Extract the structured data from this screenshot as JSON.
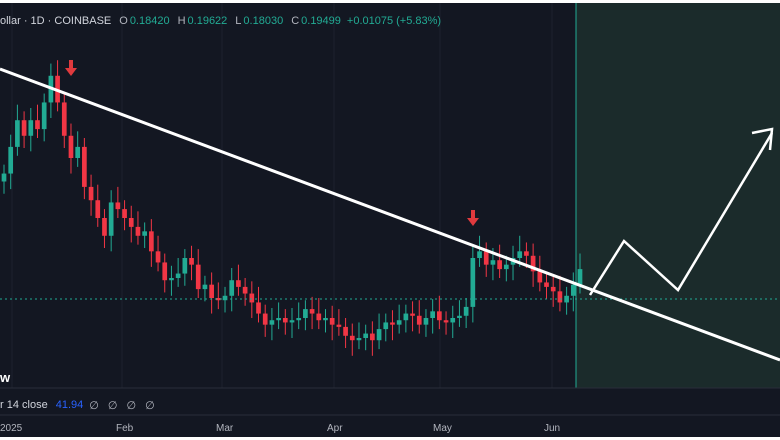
{
  "legend": {
    "symbol_text": "ollar · 1D · COINBASE",
    "open_key": "O",
    "open_val": "0.18420",
    "high_key": "H",
    "high_val": "0.19622",
    "low_key": "L",
    "low_val": "0.18030",
    "close_key": "C",
    "close_val": "0.19499",
    "change": "+0.01075 (+5.83%)"
  },
  "indicator": {
    "label": "r 14 close",
    "value": "41.94",
    "flags": "∅ ∅ ∅ ∅"
  },
  "watermark": "w",
  "colors": {
    "background": "#131722",
    "bull": "#22ab94",
    "bear": "#f23645",
    "projection_zone": "#1b2b2b",
    "trendline": "#ffffff",
    "arrow": "#e03a3e",
    "grid": "#1e222d"
  },
  "icons": {
    "top_marker": "down-arrow-icon",
    "bottom_marker": "down-arrow-icon",
    "projection": "zigzag-up-arrow-icon"
  },
  "chart_data": {
    "type": "candlestick",
    "x_tick_labels": [
      "2025",
      "Feb",
      "Mar",
      "Apr",
      "May",
      "Jun"
    ],
    "ohlc_last": {
      "open": 0.1842,
      "high": 0.19622,
      "low": 0.1803,
      "close": 0.19499
    },
    "close_series": [
      0.238,
      0.25,
      0.262,
      0.255,
      0.262,
      0.258,
      0.27,
      0.282,
      0.27,
      0.255,
      0.245,
      0.25,
      0.232,
      0.226,
      0.218,
      0.21,
      0.225,
      0.222,
      0.218,
      0.214,
      0.21,
      0.212,
      0.203,
      0.198,
      0.19,
      0.191,
      0.193,
      0.2,
      0.197,
      0.186,
      0.188,
      0.182,
      0.181,
      0.183,
      0.19,
      0.187,
      0.184,
      0.18,
      0.175,
      0.17,
      0.172,
      0.173,
      0.171,
      0.172,
      0.173,
      0.177,
      0.175,
      0.172,
      0.173,
      0.17,
      0.169,
      0.165,
      0.163,
      0.164,
      0.166,
      0.163,
      0.168,
      0.171,
      0.17,
      0.172,
      0.175,
      0.174,
      0.17,
      0.173,
      0.176,
      0.172,
      0.171,
      0.173,
      0.174,
      0.178,
      0.2,
      0.203,
      0.197,
      0.199,
      0.195,
      0.197,
      0.2,
      0.203,
      0.201,
      0.194,
      0.189,
      0.187,
      0.185,
      0.18,
      0.183,
      0.188,
      0.195
    ],
    "trendline": true,
    "current_price_line": true,
    "projection": "zigzag up"
  }
}
